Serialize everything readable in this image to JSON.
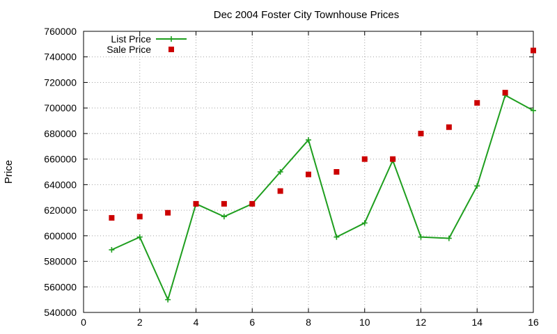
{
  "chart_data": {
    "type": "line",
    "title": "Dec 2004 Foster City Townhouse Prices",
    "xlabel": "",
    "ylabel": "Price",
    "xlim": [
      0,
      16
    ],
    "ylim": [
      540000,
      760000
    ],
    "xticks": [
      0,
      2,
      4,
      6,
      8,
      10,
      12,
      14,
      16
    ],
    "yticks": [
      540000,
      560000,
      580000,
      600000,
      620000,
      640000,
      660000,
      680000,
      700000,
      720000,
      740000,
      760000
    ],
    "grid": true,
    "legend_position": "top-left",
    "series": [
      {
        "name": "List Price",
        "style": "line-with-plus-markers",
        "color": "#1e9e1e",
        "x": [
          1,
          2,
          3,
          4,
          5,
          6,
          7,
          8,
          9,
          10,
          11,
          12,
          13,
          14,
          15,
          16
        ],
        "values": [
          589000,
          599000,
          550000,
          625000,
          615000,
          625000,
          650000,
          675000,
          599000,
          610000,
          659000,
          599000,
          598000,
          639000,
          710000,
          698000
        ]
      },
      {
        "name": "Sale Price",
        "style": "square-markers",
        "color": "#cc0000",
        "x": [
          1,
          2,
          3,
          4,
          5,
          6,
          7,
          8,
          9,
          10,
          11,
          12,
          13,
          14,
          15,
          16
        ],
        "values": [
          614000,
          615000,
          618000,
          625000,
          625000,
          625000,
          635000,
          648000,
          650000,
          660000,
          660000,
          680000,
          685000,
          704000,
          712000,
          745000
        ]
      }
    ]
  }
}
